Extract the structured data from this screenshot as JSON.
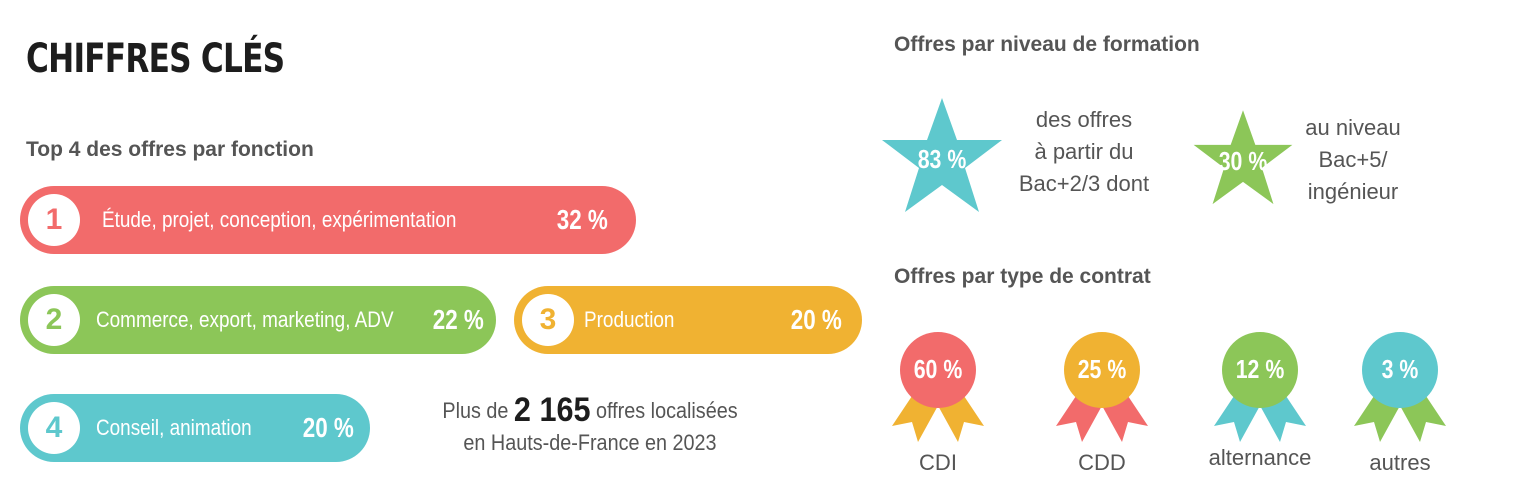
{
  "header": {
    "title": "CHIFFRES CLÉS"
  },
  "functions": {
    "title": "Top 4 des offres par fonction",
    "items": [
      {
        "rank": "1",
        "label": "Étude, projet, conception, expérimentation",
        "pct": "32 %",
        "color": "#f26b6b"
      },
      {
        "rank": "2",
        "label": "Commerce, export, marketing, ADV",
        "pct": "22 %",
        "color": "#8cc658"
      },
      {
        "rank": "3",
        "label": "Production",
        "pct": "20 %",
        "color": "#f0b232"
      },
      {
        "rank": "4",
        "label": "Conseil, animation",
        "pct": "20 %",
        "color": "#5ec8cd"
      }
    ]
  },
  "offers_total": {
    "prefix": "Plus de",
    "number": "2 165",
    "suffix": "offres localisées",
    "line2": "en Hauts-de-France en 2023"
  },
  "formation": {
    "title": "Offres par niveau de formation",
    "stars": [
      {
        "pct": "83 %",
        "lines": [
          "des offres",
          "à partir du",
          "Bac+2/3 dont"
        ],
        "color": "#5ec8cd"
      },
      {
        "pct": "30 %",
        "lines": [
          "au niveau",
          "Bac+5/",
          "ingénieur"
        ],
        "color": "#8cc658"
      }
    ]
  },
  "contracts": {
    "title": "Offres par type de contrat",
    "items": [
      {
        "pct": "60 %",
        "label": "CDI",
        "medal": "#f26b6b",
        "ribbon": "#f0b232"
      },
      {
        "pct": "25 %",
        "label": "CDD",
        "medal": "#f0b232",
        "ribbon": "#f26b6b"
      },
      {
        "pct": "12 %",
        "label": "alternance",
        "medal": "#8cc658",
        "ribbon": "#5ec8cd"
      },
      {
        "pct": "3 %",
        "label": "autres",
        "medal": "#5ec8cd",
        "ribbon": "#8cc658"
      }
    ]
  }
}
